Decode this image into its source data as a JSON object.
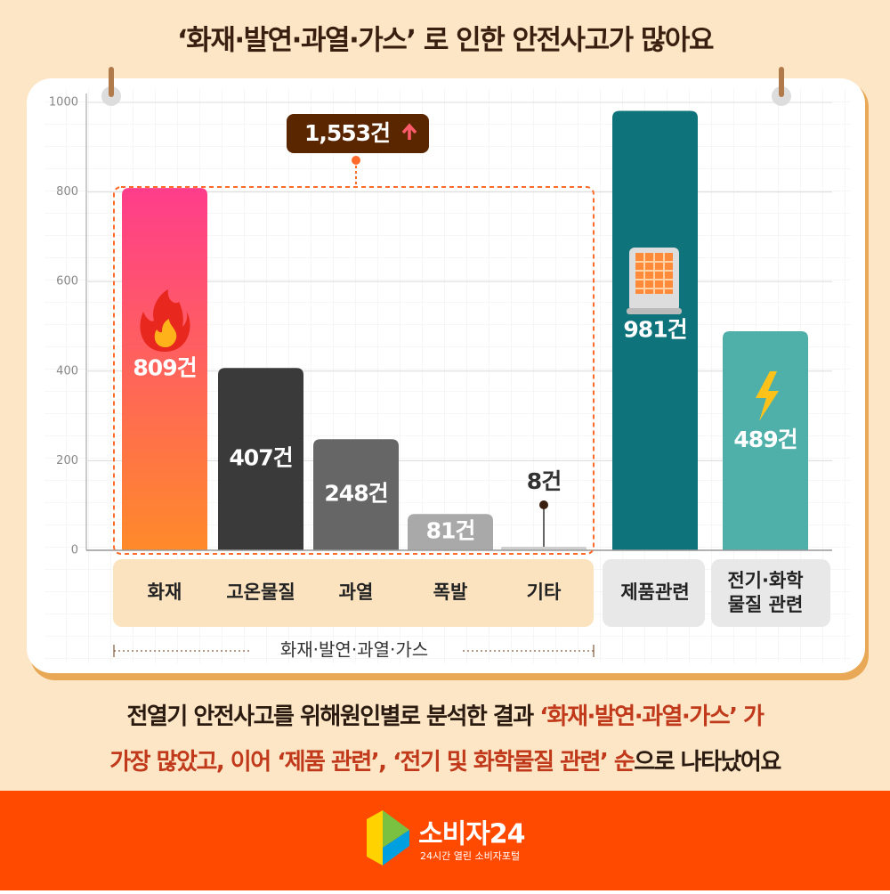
{
  "chart_data": {
    "type": "bar",
    "title": "‘화재·발연·과열·가스’ 로 인한 안전사고가 많아요",
    "categories": [
      "화재",
      "고온물질",
      "과열",
      "폭발",
      "기타",
      "제품관련",
      [
        "전기·화학",
        "물질 관련"
      ]
    ],
    "values": [
      809,
      407,
      248,
      81,
      8,
      981,
      489
    ],
    "value_labels": [
      "809건",
      "407건",
      "248건",
      "81건",
      "8건",
      "981건",
      "489건"
    ],
    "colors": [
      "#ff4f7b",
      "#3a3a3a",
      "#666666",
      "#a9a9a9",
      "#cfcfcf",
      "#0e737a",
      "#4fb0aa"
    ],
    "ylim": [
      0,
      1000
    ],
    "yticks": [
      0,
      200,
      400,
      600,
      800,
      1000
    ],
    "grid": true,
    "annotation": "1,553건",
    "group_label": "화재·발연·과열·가스"
  },
  "description": {
    "line1": [
      "전열기 안전사고를 위해원인별로 분석한 결과 ",
      "‘화재·발연·과열·가스’ 가"
    ],
    "line2": [
      "가장 많았고, 이어 ‘제품 관련’, ‘전기 및 화학물질 관련’ 순",
      "으로 나타났어요"
    ]
  },
  "footer": {
    "brand": "소비자24",
    "tagline": "24시간 열린 소비자포털"
  }
}
